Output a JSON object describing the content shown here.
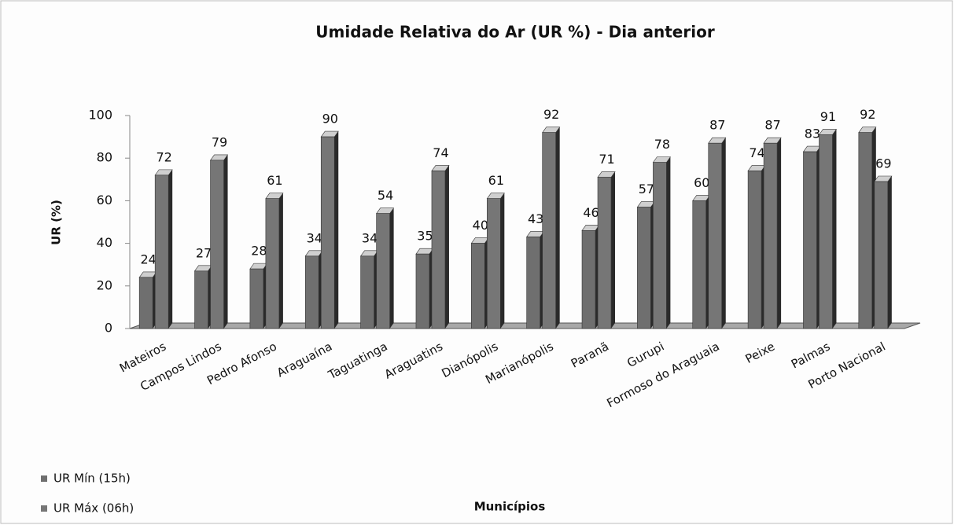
{
  "chart_data": {
    "type": "bar3d",
    "title": "Umidade Relativa do Ar (UR %) - Dia anterior",
    "x_label": "Municípios",
    "y_label": "UR (%)",
    "categories": [
      "Mateiros",
      "Campos Lindos",
      "Pedro Afonso",
      "Araguaína",
      "Taguatinga",
      "Araguatins",
      "Dianópolis",
      "Marianópolis",
      "Paranã",
      "Gurupi",
      "Formoso do Araguaia",
      "Peixe",
      "Palmas",
      "Porto Nacional"
    ],
    "series": [
      {
        "name": "UR Mín (15h)",
        "color": "#6f6f6f",
        "values": [
          24,
          27,
          28,
          34,
          34,
          35,
          40,
          43,
          46,
          57,
          60,
          74,
          83,
          92
        ]
      },
      {
        "name": "UR Máx (06h)",
        "color": "#767676",
        "values": [
          72,
          79,
          61,
          90,
          54,
          74,
          61,
          92,
          71,
          78,
          87,
          87,
          91,
          69
        ]
      }
    ],
    "ylim": [
      0,
      100
    ],
    "yticks": [
      0,
      20,
      40,
      60,
      80,
      100
    ],
    "legend": "bottom-left"
  }
}
